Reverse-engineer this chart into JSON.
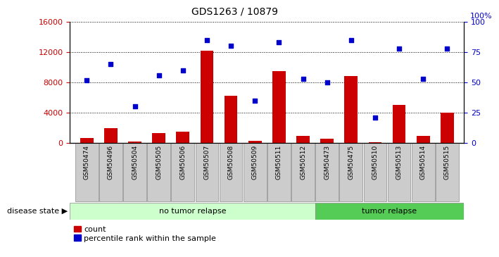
{
  "title": "GDS1263 / 10879",
  "samples": [
    "GSM50474",
    "GSM50496",
    "GSM50504",
    "GSM50505",
    "GSM50506",
    "GSM50507",
    "GSM50508",
    "GSM50509",
    "GSM50511",
    "GSM50512",
    "GSM50473",
    "GSM50475",
    "GSM50510",
    "GSM50513",
    "GSM50514",
    "GSM50515"
  ],
  "counts": [
    700,
    2000,
    200,
    1300,
    1500,
    12200,
    6200,
    300,
    9500,
    900,
    600,
    8800,
    150,
    5000,
    900,
    4000
  ],
  "percentile": [
    52,
    65,
    30,
    56,
    60,
    85,
    80,
    35,
    83,
    53,
    50,
    85,
    21,
    78,
    53,
    78
  ],
  "no_tumor_count": 10,
  "tumor_count": 6,
  "ylim_left": [
    0,
    16000
  ],
  "ylim_right": [
    0,
    100
  ],
  "yticks_left": [
    0,
    4000,
    8000,
    12000,
    16000
  ],
  "yticks_right": [
    0,
    25,
    50,
    75,
    100
  ],
  "bar_color": "#cc0000",
  "dot_color": "#0000cc",
  "no_relapse_color": "#ccffcc",
  "relapse_color": "#55cc55",
  "sample_bg_color": "#cccccc",
  "label_count": "count",
  "label_percentile": "percentile rank within the sample",
  "disease_state_label": "disease state",
  "no_tumor_label": "no tumor relapse",
  "tumor_label": "tumor relapse",
  "right_axis_top_label": "100%"
}
